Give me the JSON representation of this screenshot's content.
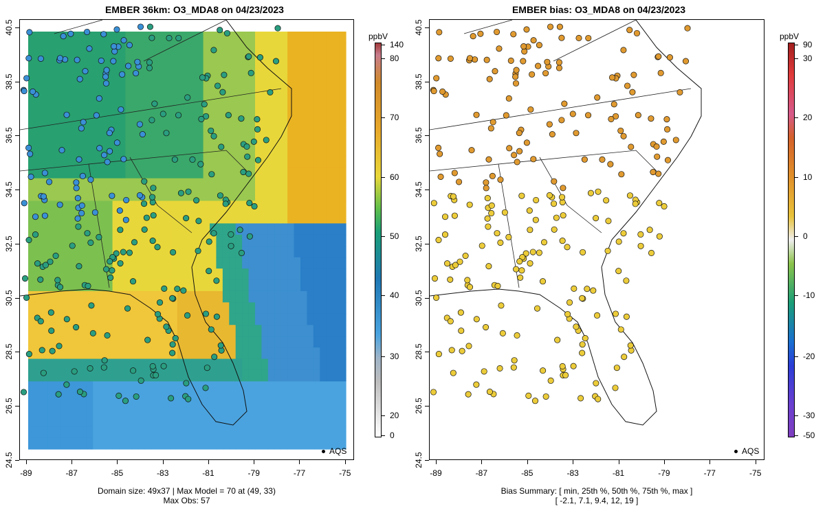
{
  "left_panel": {
    "title": "EMBER 36km: O3_MDA8 on 04/23/2023",
    "footer_line1": "Domain size: 49x37 | Max Model = 70 at (49, 33)",
    "footer_line2": "Max Obs: 57",
    "colorbar_units": "ppbV",
    "colorbar_ticks": [
      "140",
      "80",
      "70",
      "60",
      "50",
      "40",
      "30",
      "20",
      "0"
    ],
    "legend_label": "AQS"
  },
  "right_panel": {
    "title": "EMBER bias: O3_MDA8 on 04/23/2023",
    "footer_line1": "Bias Summary: [ min, 25th %, 50th %, 75th %, max ]",
    "footer_line2": "[ -2.1,   7.1,   9.4,   12,   19 ]",
    "colorbar_units": "ppbV",
    "colorbar_ticks": [
      "90",
      "30",
      "20",
      "10",
      "0",
      "-10",
      "-20",
      "-30",
      "-50"
    ],
    "legend_label": "AQS"
  },
  "axes": {
    "x_ticks": [
      "-89",
      "-87",
      "-85",
      "-83",
      "-81",
      "-79",
      "-77",
      "-75"
    ],
    "y_ticks": [
      "40.5",
      "38.5",
      "36.5",
      "34.5",
      "32.5",
      "30.5",
      "28.5",
      "26.5",
      "24.5"
    ],
    "x_range": [
      -89.3,
      -74.6
    ],
    "y_range": [
      24.5,
      40.8
    ]
  },
  "colors": {
    "model_scale": [
      "#ffffff",
      "#bdbdbd",
      "#4aa3df",
      "#1f78b4",
      "#1a9e77",
      "#5fbf4a",
      "#e8d73a",
      "#eab322",
      "#d9851e",
      "#b55c2c",
      "#a33b3b"
    ],
    "bias_scale": [
      "#7f3fbf",
      "#2b3dd6",
      "#1a6fd1",
      "#1a9e77",
      "#8bc34a",
      "#eeeeee",
      "#f0d23a",
      "#e89a2b",
      "#d4612a",
      "#cc1f1f",
      "#e06090"
    ],
    "obs_blue": "#3a90d6",
    "obs_teal": "#2a9e80",
    "bias_orange": "#e09a30",
    "bias_yellow": "#eccc3a"
  }
}
